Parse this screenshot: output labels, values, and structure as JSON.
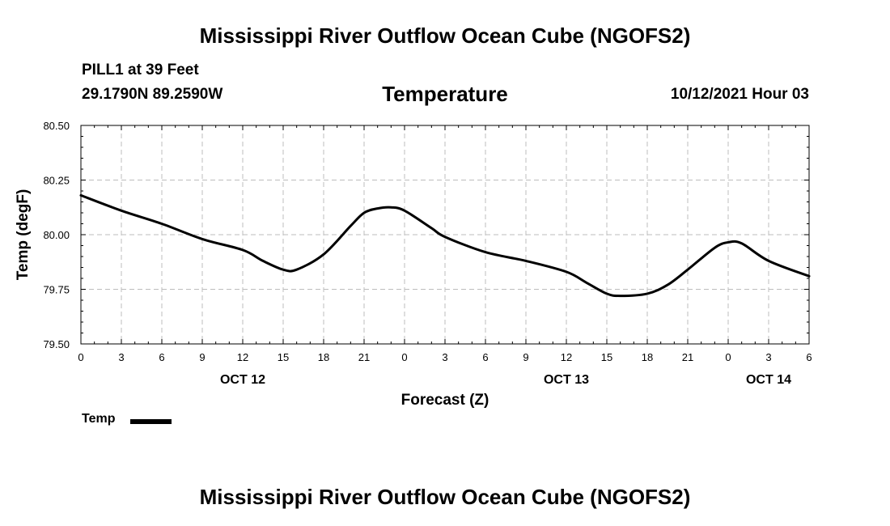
{
  "header": {
    "title": "Mississippi River Outflow Ocean Cube (NGOFS2)",
    "station": "PILL1 at 39 Feet",
    "coordinates": "29.1790N  89.2590W",
    "chart_title": "Temperature",
    "datetime": "10/12/2021 Hour 03"
  },
  "footer": {
    "title": "Mississippi River Outflow Ocean Cube (NGOFS2)"
  },
  "chart_data": {
    "type": "line",
    "title": "Temperature",
    "xlabel": "Forecast (Z)",
    "ylabel": "Temp (degF)",
    "xlim": [
      0,
      54
    ],
    "ylim": [
      79.5,
      80.5
    ],
    "grid": true,
    "x_ticks": [
      0,
      3,
      6,
      9,
      12,
      15,
      18,
      21,
      24,
      27,
      30,
      33,
      36,
      39,
      42,
      45,
      48,
      51,
      54
    ],
    "x_tick_labels": [
      "0",
      "3",
      "6",
      "9",
      "12",
      "15",
      "18",
      "21",
      "0",
      "3",
      "6",
      "9",
      "12",
      "15",
      "18",
      "21",
      "0",
      "3",
      "6"
    ],
    "y_ticks": [
      79.5,
      79.75,
      80.0,
      80.25,
      80.5
    ],
    "y_tick_labels": [
      "79.50",
      "79.75",
      "80.00",
      "80.25",
      "80.50"
    ],
    "date_labels": [
      {
        "x": 12,
        "label": "OCT 12"
      },
      {
        "x": 36,
        "label": "OCT 13"
      },
      {
        "x": 51,
        "label": "OCT 14"
      }
    ],
    "legend": "bottom-left",
    "series": [
      {
        "name": "Temp",
        "color": "#000000",
        "x": [
          0,
          3,
          6,
          9,
          12,
          13.5,
          15,
          16,
          18,
          20,
          21,
          22,
          23,
          24,
          26,
          27,
          30,
          33,
          36,
          37.5,
          39,
          40,
          42,
          43.5,
          45,
          47,
          48,
          49,
          51,
          54
        ],
        "y": [
          80.18,
          80.11,
          80.05,
          79.98,
          79.93,
          79.88,
          79.84,
          79.84,
          79.91,
          80.04,
          80.1,
          80.12,
          80.125,
          80.11,
          80.03,
          79.99,
          79.92,
          79.88,
          79.83,
          79.78,
          79.73,
          79.72,
          79.73,
          79.77,
          79.84,
          79.94,
          79.965,
          79.96,
          79.88,
          79.81
        ]
      }
    ]
  }
}
